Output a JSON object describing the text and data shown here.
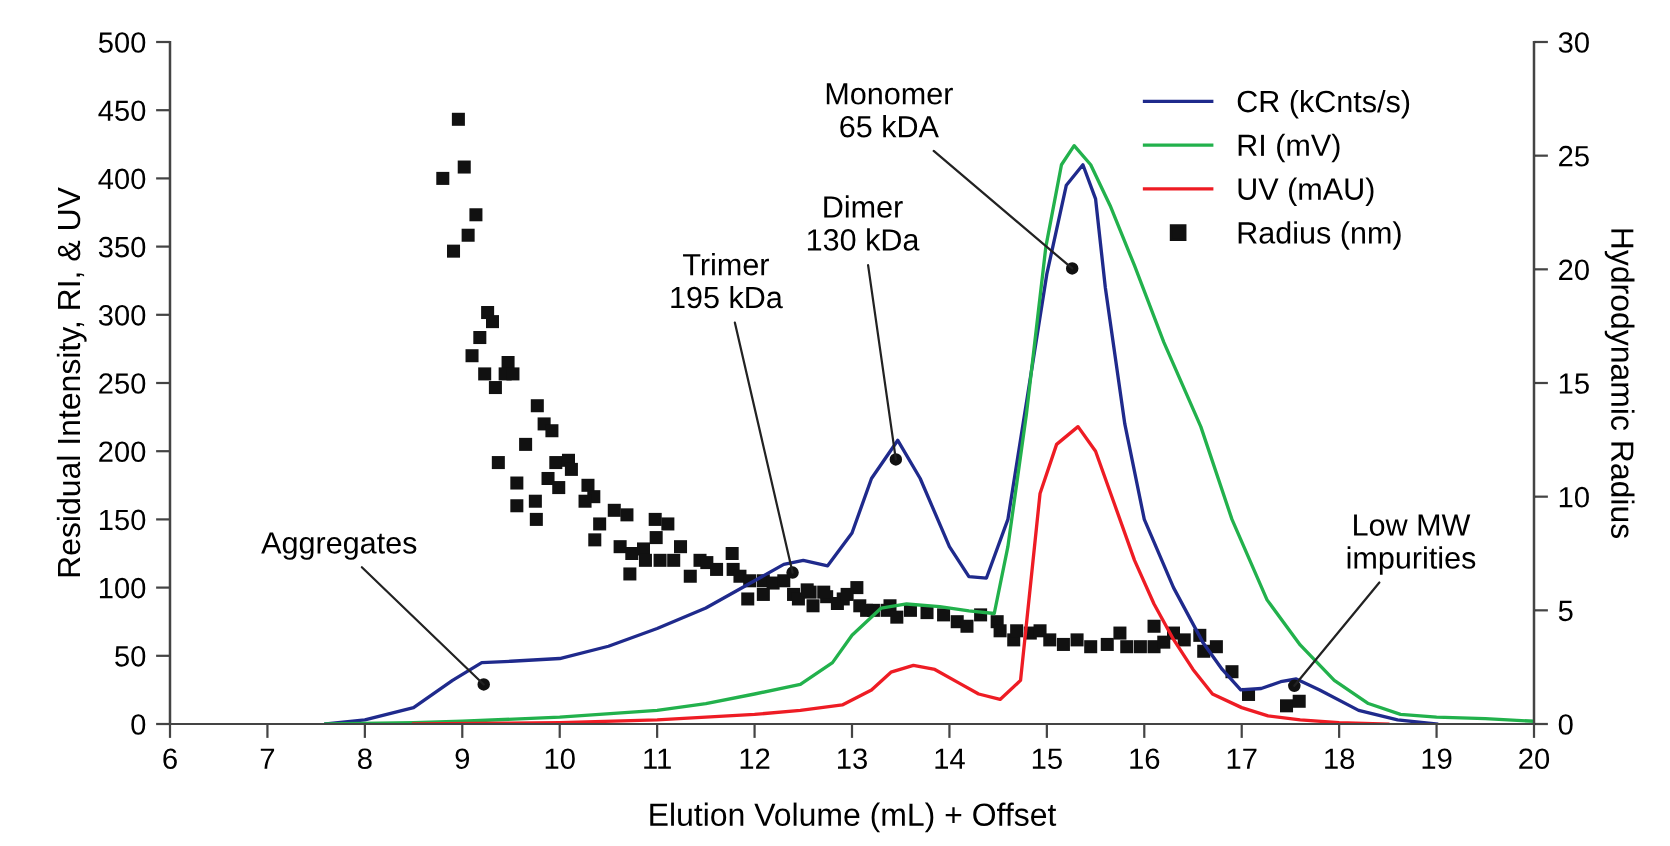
{
  "chart_data": {
    "type": "line",
    "xlabel": "Elution Volume (mL) + Offset",
    "ylabel": "Residual Intensity, RI, & UV",
    "y2label": "Hydrodynamic Radius",
    "xlim": [
      6,
      20
    ],
    "xticks": [
      6,
      7,
      8,
      9,
      10,
      11,
      12,
      13,
      14,
      15,
      16,
      17,
      18,
      19,
      20
    ],
    "ylim": [
      0,
      500
    ],
    "yticks": [
      0,
      50,
      100,
      150,
      200,
      250,
      300,
      350,
      400,
      450,
      500
    ],
    "y2lim": [
      0,
      30
    ],
    "y2ticks": [
      0,
      5,
      10,
      15,
      20,
      25,
      30
    ],
    "grid": false,
    "legend": "top right",
    "marker": "none",
    "line_style": "solid",
    "series": [
      {
        "name": "CR (kCnts/s)",
        "color": "#1f2a8c",
        "x": [
          7.6,
          8.0,
          8.5,
          8.9,
          9.2,
          9.5,
          10.0,
          10.5,
          11.0,
          11.5,
          12.0,
          12.3,
          12.5,
          12.75,
          13.0,
          13.2,
          13.47,
          13.7,
          14.0,
          14.2,
          14.38,
          14.6,
          14.8,
          15.0,
          15.2,
          15.37,
          15.5,
          15.6,
          15.8,
          16.0,
          16.3,
          16.6,
          16.8,
          16.99,
          17.2,
          17.4,
          17.56,
          17.8,
          18.2,
          18.6,
          19.0
        ],
        "values": [
          0,
          3,
          12,
          32,
          45,
          46,
          48,
          57,
          70,
          85,
          105,
          117,
          120,
          116,
          140,
          180,
          208,
          180,
          130,
          108,
          107,
          150,
          240,
          330,
          395,
          410,
          385,
          320,
          220,
          150,
          100,
          60,
          40,
          25,
          26,
          31,
          33,
          25,
          10,
          3,
          0
        ]
      },
      {
        "name": "RI (mV)",
        "color": "#22b14c",
        "x": [
          7.6,
          8.5,
          9.0,
          10.0,
          11.0,
          11.5,
          12.0,
          12.47,
          12.8,
          13.0,
          13.3,
          13.56,
          13.9,
          14.2,
          14.46,
          14.6,
          14.79,
          14.99,
          15.15,
          15.28,
          15.45,
          15.65,
          15.9,
          16.2,
          16.58,
          16.9,
          17.26,
          17.6,
          17.95,
          18.3,
          18.63,
          19.0,
          19.5,
          20.0
        ],
        "values": [
          0,
          1,
          2,
          5,
          10,
          15,
          22,
          29,
          45,
          65,
          85,
          88,
          86,
          83,
          81,
          130,
          227,
          350,
          410,
          424,
          410,
          380,
          336,
          280,
          218,
          150,
          91,
          58,
          32,
          15,
          7,
          5,
          4,
          2
        ]
      },
      {
        "name": "UV (mAU)",
        "color": "#ee1c24",
        "x": [
          8.5,
          10.0,
          11.0,
          12.0,
          12.47,
          12.9,
          13.2,
          13.4,
          13.63,
          13.85,
          14.1,
          14.3,
          14.52,
          14.73,
          14.93,
          15.1,
          15.32,
          15.5,
          15.7,
          15.9,
          16.1,
          16.3,
          16.5,
          16.7,
          17.0,
          17.27,
          17.6,
          18.0,
          18.5
        ],
        "values": [
          0,
          1,
          3,
          7,
          10,
          14,
          25,
          38,
          43,
          40,
          30,
          22,
          18,
          32,
          169,
          205,
          218,
          200,
          160,
          120,
          88,
          62,
          40,
          22,
          12,
          6,
          3,
          1,
          0
        ]
      },
      {
        "name": "Radius (nm)",
        "type": "scatter",
        "axis": "y2",
        "marker": "square",
        "color": "#111111",
        "x": [
          8.96,
          9.02,
          8.8,
          9.14,
          9.06,
          8.91,
          9.26,
          9.31,
          9.18,
          9.1,
          9.23,
          9.47,
          9.44,
          9.52,
          9.34,
          9.77,
          9.84,
          9.92,
          9.65,
          9.37,
          9.96,
          10.09,
          10.12,
          9.88,
          9.56,
          9.99,
          10.29,
          10.35,
          10.26,
          9.75,
          9.56,
          9.76,
          10.56,
          10.69,
          10.41,
          10.98,
          11.11,
          10.36,
          10.62,
          10.74,
          10.86,
          10.99,
          11.24,
          10.72,
          10.88,
          11.03,
          11.17,
          11.34,
          11.44,
          11.51,
          11.61,
          11.77,
          11.78,
          11.85,
          11.95,
          11.93,
          12.09,
          12.09,
          12.19,
          12.3,
          12.4,
          12.45,
          12.6,
          12.57,
          12.74,
          12.91,
          13.05,
          13.08,
          13.22,
          13.39,
          12.54,
          12.71,
          12.85,
          12.95,
          13.15,
          13.36,
          13.46,
          13.6,
          13.77,
          13.94,
          14.08,
          14.18,
          14.32,
          14.49,
          14.52,
          14.66,
          14.69,
          14.83,
          14.93,
          15.03,
          15.17,
          15.31,
          15.45,
          15.62,
          15.75,
          15.82,
          15.96,
          16.1,
          16.1,
          16.2,
          16.3,
          16.41,
          16.57,
          16.61,
          16.74,
          16.9,
          17.07,
          17.46,
          17.59
        ],
        "values": [
          26.6,
          24.5,
          24.0,
          22.4,
          21.5,
          20.8,
          18.1,
          17.7,
          17.0,
          16.2,
          15.4,
          15.9,
          15.4,
          15.4,
          14.8,
          14.0,
          13.2,
          12.9,
          12.3,
          11.5,
          11.5,
          11.6,
          11.2,
          10.8,
          10.6,
          10.4,
          10.5,
          10.0,
          9.8,
          9.8,
          9.6,
          9.0,
          9.4,
          9.2,
          8.8,
          9.0,
          8.8,
          8.1,
          7.8,
          7.5,
          7.7,
          8.2,
          7.8,
          6.6,
          7.2,
          7.2,
          7.2,
          6.5,
          7.2,
          7.1,
          6.8,
          7.5,
          6.8,
          6.5,
          6.3,
          5.5,
          5.7,
          6.3,
          6.2,
          6.3,
          5.7,
          5.5,
          5.2,
          5.8,
          5.6,
          5.5,
          6.0,
          5.2,
          5.0,
          5.2,
          5.9,
          5.8,
          5.3,
          5.7,
          5.0,
          5.0,
          4.7,
          5.0,
          4.9,
          4.8,
          4.5,
          4.3,
          4.8,
          4.5,
          4.1,
          3.7,
          4.1,
          4.0,
          4.1,
          3.7,
          3.5,
          3.7,
          3.4,
          3.5,
          4.0,
          3.4,
          3.4,
          4.3,
          3.4,
          3.6,
          4.0,
          3.7,
          3.9,
          3.2,
          3.4,
          2.3,
          1.3,
          0.8,
          1.0
        ]
      }
    ],
    "annotations": [
      {
        "text": "Aggregates",
        "x": 9.22,
        "y": 29
      },
      {
        "text": "Trimer\n195 kDa",
        "x": 12.39,
        "y": 111
      },
      {
        "text": "Dimer\n130 kDa",
        "x": 13.45,
        "y": 194
      },
      {
        "text": "Monomer\n65 kDA",
        "x": 15.26,
        "y": 334
      },
      {
        "text": "Low MW\nimpurities",
        "x": 17.54,
        "y": 28
      }
    ]
  }
}
